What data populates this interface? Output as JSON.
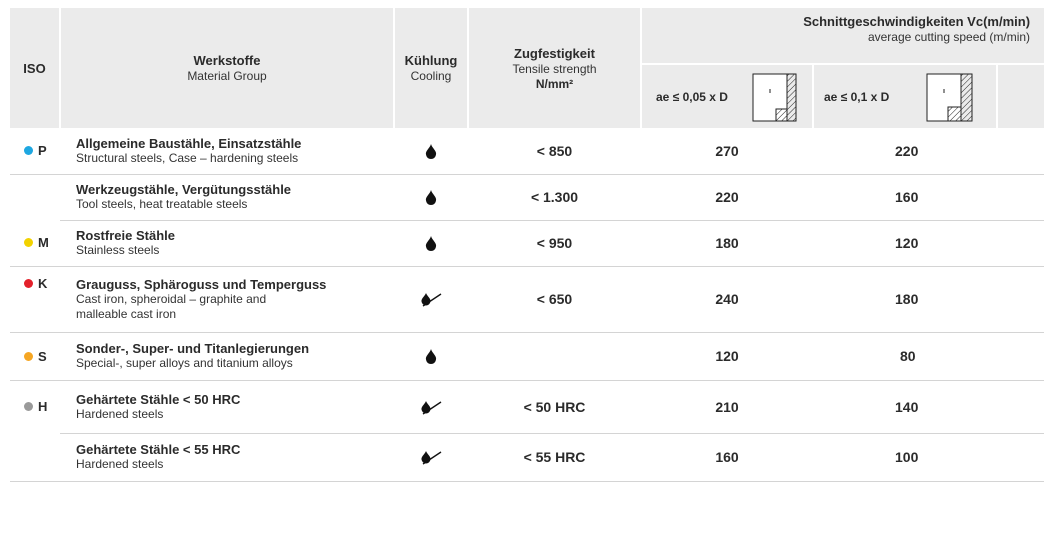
{
  "header": {
    "iso": "ISO",
    "material_title": "Werkstoffe",
    "material_sub": "Material Group",
    "cooling_title": "Kühlung",
    "cooling_sub": "Cooling",
    "tensile_title": "Zugfestigkeit",
    "tensile_sub": "Tensile strength",
    "tensile_unit": "N/mm²",
    "speed_title": "Schnittgeschwindigkeiten Vc(m/min)",
    "speed_sub": "average cutting speed (m/min)",
    "ae1": "ae ≤ 0,05 x D",
    "ae2": "ae ≤ 0,1 x D"
  },
  "colors": {
    "P": "#1ea7e1",
    "M": "#f2d200",
    "K": "#e3212b",
    "S": "#f5a623",
    "H": "#9a9a9a"
  },
  "rows": [
    {
      "iso": "P",
      "color": "#1ea7e1",
      "title": "Allgemeine Baustähle, Einsatzstähle",
      "sub": [
        "Structural steels, Case – hardening steels"
      ],
      "cooling": "drop-icon",
      "tensile": "< 850",
      "v1": "270",
      "v2": "220"
    },
    {
      "iso": "",
      "color": "",
      "title": "Werkzeugstähle, Vergütungsstähle",
      "sub": [
        "Tool steels, heat treatable steels"
      ],
      "cooling": "drop-icon",
      "tensile": "< 1.300",
      "v1": "220",
      "v2": "160"
    },
    {
      "iso": "M",
      "color": "#f2d200",
      "title": "Rostfreie Stähle",
      "sub": [
        "Stainless steels"
      ],
      "cooling": "drop-icon",
      "tensile": "< 950",
      "v1": "180",
      "v2": "120"
    },
    {
      "iso": "K",
      "color": "#e3212b",
      "title": "Grauguss, Sphäroguss und Temperguss",
      "sub": [
        "Cast iron, spheroidal – graphite and",
        "malleable cast iron"
      ],
      "cooling": "air-icon",
      "tensile": "< 650",
      "v1": "240",
      "v2": "180"
    },
    {
      "iso": "S",
      "color": "#f5a623",
      "title": "Sonder-, Super- und Titanlegierungen",
      "sub": [
        "Special-, super alloys  and titanium alloys"
      ],
      "cooling": "drop-icon",
      "tensile": "",
      "v1": "120",
      "v2": "80"
    },
    {
      "iso": "H",
      "color": "#9a9a9a",
      "title": "Gehärtete Stähle < 50 HRC",
      "sub": [
        "Hardened steels"
      ],
      "cooling": "air-icon",
      "tensile": "< 50 HRC",
      "v1": "210",
      "v2": "140"
    },
    {
      "iso": "",
      "color": "",
      "title": "Gehärtete Stähle < 55 HRC",
      "sub": [
        "Hardened steels"
      ],
      "cooling": "air-icon",
      "tensile": "< 55 HRC",
      "v1": "160",
      "v2": "100"
    }
  ]
}
